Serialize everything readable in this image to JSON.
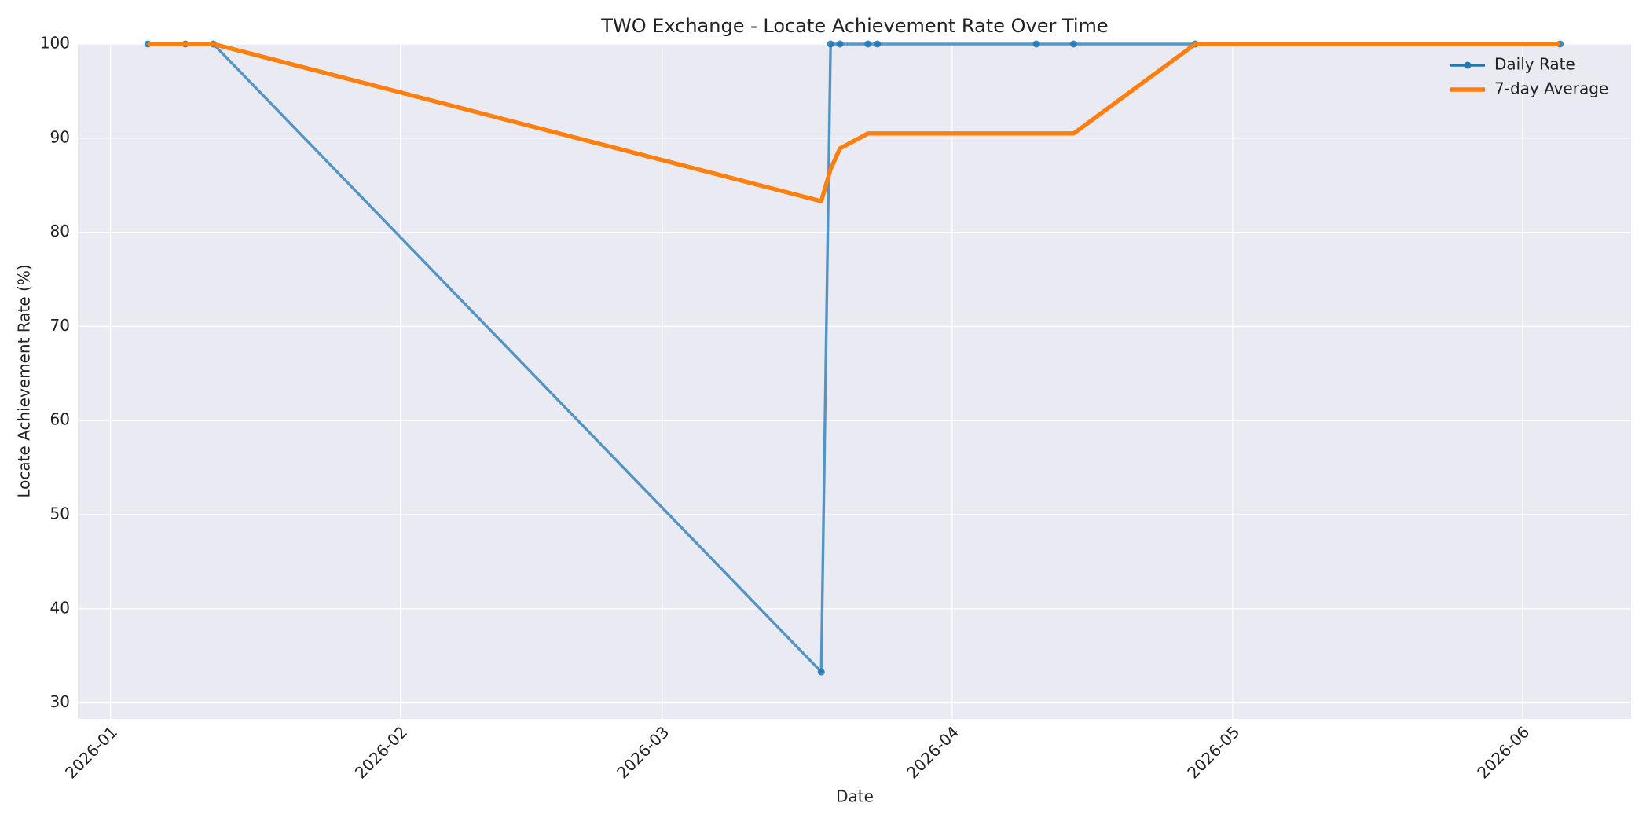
{
  "chart_data": {
    "type": "line",
    "title": "TWO Exchange - Locate Achievement Rate Over Time",
    "x_label": "Date",
    "y_label": "Locate Achievement Rate (%)",
    "x": [
      4,
      8,
      11,
      76,
      77,
      78,
      81,
      82,
      99,
      103,
      116,
      155
    ],
    "series": [
      {
        "name": "Daily Rate",
        "color": "#1f77b4",
        "markers": true,
        "values": [
          100,
          100,
          100,
          33.3,
          100,
          100,
          100,
          100,
          100,
          100,
          100,
          100
        ]
      },
      {
        "name": "7-day Average",
        "color": "#ff7f0e",
        "markers": false,
        "values": [
          100,
          100,
          100,
          83.3,
          86.7,
          88.9,
          90.5,
          90.5,
          90.5,
          90.5,
          100,
          100
        ]
      }
    ],
    "xlim": [
      -3.5,
      162.6
    ],
    "xticks": [
      {
        "value": 0,
        "label": "2026-01"
      },
      {
        "value": 31,
        "label": "2026-02"
      },
      {
        "value": 59,
        "label": "2026-03"
      },
      {
        "value": 90,
        "label": "2026-04"
      },
      {
        "value": 120,
        "label": "2026-05"
      },
      {
        "value": 151,
        "label": "2026-06"
      }
    ],
    "ylim": [
      28.3,
      100
    ],
    "yticks": [
      30,
      40,
      50,
      60,
      70,
      80,
      90,
      100
    ],
    "grid": true,
    "legend": "upper right"
  }
}
